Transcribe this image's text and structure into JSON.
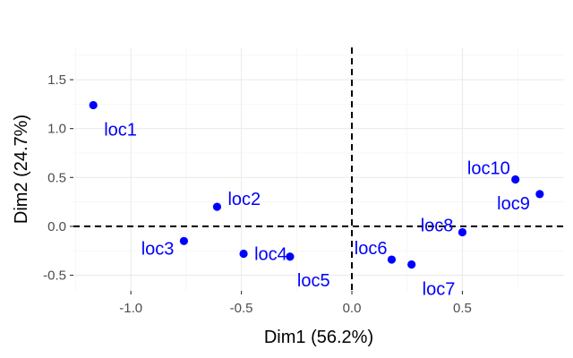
{
  "chart_data": {
    "type": "scatter",
    "title": "",
    "xlabel": "Dim1 (56.2%)",
    "ylabel": "Dim2 (24.7%)",
    "xlim": [
      -1.26,
      0.96
    ],
    "ylim": [
      -0.66,
      1.83
    ],
    "xticks": [
      -1.0,
      -0.5,
      0.0,
      0.5
    ],
    "xtick_labels": [
      "-1.0",
      "-0.5",
      "0.0",
      "0.5"
    ],
    "yticks": [
      -0.5,
      0.0,
      0.5,
      1.0,
      1.5
    ],
    "ytick_labels": [
      "-0.5",
      "0.0",
      "0.5",
      "1.0",
      "1.5"
    ],
    "grid": true,
    "reference_lines": {
      "x": 0,
      "y": 0,
      "style": "dashed"
    },
    "legend": "none",
    "point_color": "#0000ff",
    "points": [
      {
        "label": "loc1",
        "x": -1.17,
        "y": 1.24
      },
      {
        "label": "loc2",
        "x": -0.61,
        "y": 0.2
      },
      {
        "label": "loc3",
        "x": -0.76,
        "y": -0.15
      },
      {
        "label": "loc4",
        "x": -0.49,
        "y": -0.28
      },
      {
        "label": "loc5",
        "x": -0.28,
        "y": -0.31
      },
      {
        "label": "loc6",
        "x": 0.18,
        "y": -0.34
      },
      {
        "label": "loc7",
        "x": 0.27,
        "y": -0.39
      },
      {
        "label": "loc8",
        "x": 0.5,
        "y": -0.06
      },
      {
        "label": "loc9",
        "x": 0.85,
        "y": 0.33
      },
      {
        "label": "loc10",
        "x": 0.74,
        "y": 0.48
      }
    ]
  }
}
